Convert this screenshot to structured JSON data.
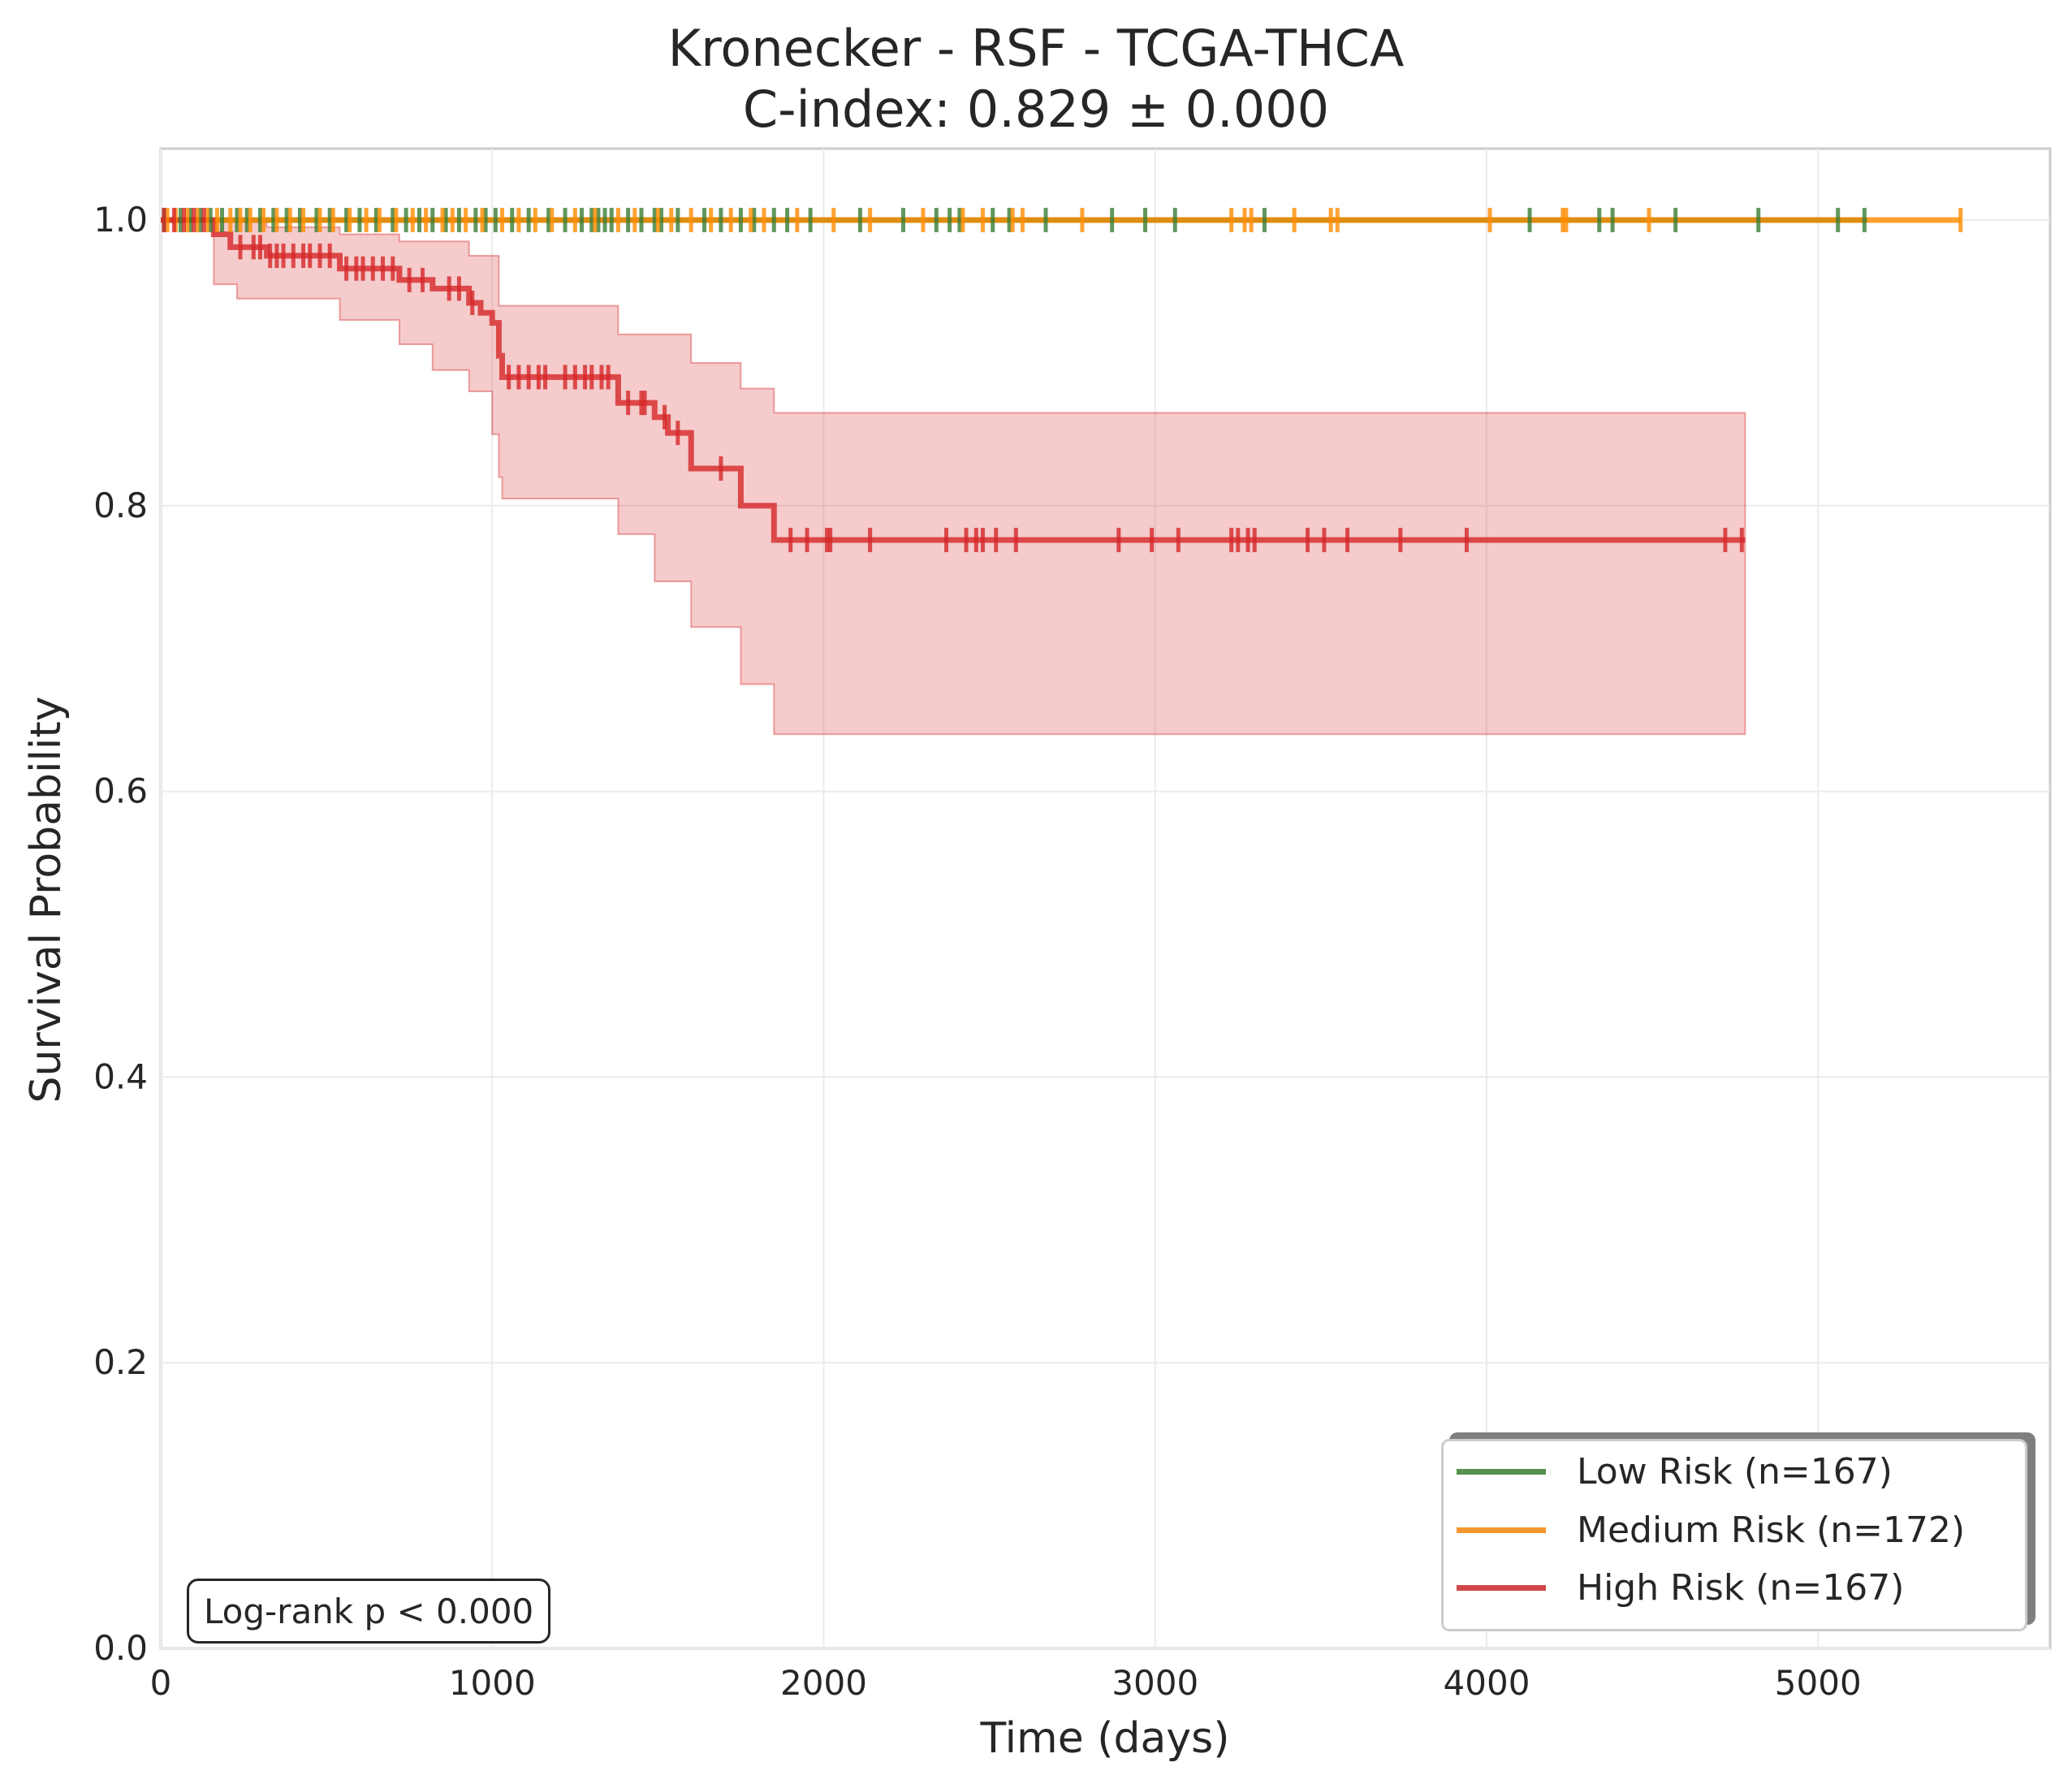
{
  "title": "Kronecker - RSF - TCGA-THCA",
  "subtitle": "C-index: 0.829 ± 0.000",
  "stat_annotation": "Log-rank p < 0.000",
  "chart_data": {
    "type": "line",
    "style": "kaplan-meier step survival curves with censor ticks and confidence band",
    "xlabel": "Time (days)",
    "ylabel": "Survival Probability",
    "xlim": [
      0,
      5700
    ],
    "ylim": [
      0,
      1.05
    ],
    "xticks": [
      0,
      1000,
      2000,
      3000,
      4000,
      5000
    ],
    "yticks": [
      0.0,
      0.2,
      0.4,
      0.6,
      0.8,
      1.0
    ],
    "xtick_labels": [
      "0",
      "1000",
      "2000",
      "3000",
      "4000",
      "5000"
    ],
    "ytick_labels": [
      "0.0",
      "0.2",
      "0.4",
      "0.6",
      "0.8",
      "1.0"
    ],
    "grid": true,
    "legend_position": "lower right",
    "series": [
      {
        "name": "Low Risk (n=167)",
        "color": "#3a7d34",
        "steps": [
          [
            0,
            1.0
          ],
          [
            5150,
            1.0
          ]
        ],
        "censor_times": [
          10,
          60,
          90,
          120,
          150,
          185,
          230,
          260,
          300,
          340,
          380,
          420,
          470,
          510,
          560,
          600,
          650,
          700,
          740,
          780,
          820,
          860,
          900,
          950,
          980,
          1010,
          1060,
          1110,
          1170,
          1220,
          1270,
          1300,
          1320,
          1340,
          1360,
          1410,
          1450,
          1490,
          1510,
          1560,
          1640,
          1690,
          1750,
          1790,
          1850,
          1890,
          1960,
          2110,
          2240,
          2340,
          2380,
          2410,
          2510,
          2560,
          2670,
          2870,
          2970,
          3060,
          3330,
          4130,
          4340,
          4380,
          4570,
          4820,
          5060,
          5140
        ]
      },
      {
        "name": "Medium Risk (n=172)",
        "color": "#ff8c00",
        "steps": [
          [
            0,
            1.0
          ],
          [
            5430,
            1.0
          ]
        ],
        "censor_times": [
          20,
          45,
          80,
          110,
          140,
          170,
          210,
          240,
          270,
          310,
          350,
          390,
          430,
          480,
          520,
          570,
          620,
          660,
          710,
          760,
          800,
          850,
          880,
          920,
          970,
          1030,
          1080,
          1130,
          1180,
          1250,
          1310,
          1380,
          1430,
          1500,
          1540,
          1600,
          1660,
          1720,
          1780,
          1820,
          1920,
          2030,
          2140,
          2300,
          2420,
          2480,
          2570,
          2600,
          2780,
          3230,
          3270,
          3290,
          3420,
          3530,
          3550,
          4010,
          4230,
          4240,
          4490,
          5430
        ]
      },
      {
        "name": "High Risk (n=167)",
        "color": "#d62728",
        "steps": [
          [
            0,
            1.0
          ],
          [
            160,
            1.0
          ],
          [
            160,
            0.99
          ],
          [
            210,
            0.99
          ],
          [
            210,
            0.981
          ],
          [
            320,
            0.981
          ],
          [
            320,
            0.975
          ],
          [
            540,
            0.975
          ],
          [
            540,
            0.966
          ],
          [
            720,
            0.966
          ],
          [
            720,
            0.958
          ],
          [
            820,
            0.958
          ],
          [
            820,
            0.952
          ],
          [
            930,
            0.952
          ],
          [
            930,
            0.942
          ],
          [
            965,
            0.942
          ],
          [
            965,
            0.935
          ],
          [
            1000,
            0.935
          ],
          [
            1000,
            0.928
          ],
          [
            1020,
            0.928
          ],
          [
            1020,
            0.905
          ],
          [
            1030,
            0.905
          ],
          [
            1030,
            0.89
          ],
          [
            1380,
            0.89
          ],
          [
            1380,
            0.872
          ],
          [
            1490,
            0.872
          ],
          [
            1490,
            0.862
          ],
          [
            1530,
            0.862
          ],
          [
            1530,
            0.851
          ],
          [
            1600,
            0.851
          ],
          [
            1600,
            0.826
          ],
          [
            1750,
            0.826
          ],
          [
            1750,
            0.8
          ],
          [
            1850,
            0.8
          ],
          [
            1850,
            0.776
          ],
          [
            4780,
            0.776
          ]
        ],
        "ci_upper": [
          [
            0,
            1.0
          ],
          [
            160,
            1.0
          ],
          [
            160,
            1.0
          ],
          [
            320,
            1.0
          ],
          [
            320,
            0.995
          ],
          [
            540,
            0.995
          ],
          [
            540,
            0.99
          ],
          [
            720,
            0.99
          ],
          [
            720,
            0.985
          ],
          [
            930,
            0.985
          ],
          [
            930,
            0.975
          ],
          [
            1020,
            0.975
          ],
          [
            1020,
            0.94
          ],
          [
            1380,
            0.94
          ],
          [
            1380,
            0.92
          ],
          [
            1600,
            0.92
          ],
          [
            1600,
            0.9
          ],
          [
            1750,
            0.9
          ],
          [
            1750,
            0.882
          ],
          [
            1850,
            0.882
          ],
          [
            1850,
            0.865
          ],
          [
            4780,
            0.865
          ]
        ],
        "ci_lower": [
          [
            0,
            1.0
          ],
          [
            160,
            1.0
          ],
          [
            160,
            0.955
          ],
          [
            230,
            0.955
          ],
          [
            230,
            0.945
          ],
          [
            540,
            0.945
          ],
          [
            540,
            0.93
          ],
          [
            720,
            0.93
          ],
          [
            720,
            0.913
          ],
          [
            820,
            0.913
          ],
          [
            820,
            0.895
          ],
          [
            930,
            0.895
          ],
          [
            930,
            0.88
          ],
          [
            1000,
            0.88
          ],
          [
            1000,
            0.85
          ],
          [
            1020,
            0.85
          ],
          [
            1020,
            0.82
          ],
          [
            1030,
            0.82
          ],
          [
            1030,
            0.805
          ],
          [
            1380,
            0.805
          ],
          [
            1380,
            0.78
          ],
          [
            1490,
            0.78
          ],
          [
            1490,
            0.747
          ],
          [
            1600,
            0.747
          ],
          [
            1600,
            0.715
          ],
          [
            1750,
            0.715
          ],
          [
            1750,
            0.675
          ],
          [
            1850,
            0.675
          ],
          [
            1850,
            0.64
          ],
          [
            4780,
            0.64
          ]
        ],
        "censor_times": [
          10,
          40,
          70,
          100,
          130,
          240,
          280,
          300,
          330,
          350,
          370,
          400,
          430,
          450,
          480,
          510,
          560,
          590,
          610,
          640,
          670,
          700,
          750,
          790,
          870,
          900,
          940,
          1050,
          1080,
          1110,
          1140,
          1160,
          1220,
          1250,
          1280,
          1300,
          1330,
          1350,
          1410,
          1450,
          1460,
          1520,
          1560,
          1690,
          1900,
          1950,
          2010,
          2020,
          2140,
          2370,
          2430,
          2460,
          2480,
          2520,
          2580,
          2890,
          2990,
          3070,
          3230,
          3250,
          3280,
          3300,
          3460,
          3510,
          3580,
          3740,
          3940,
          4720,
          4770
        ]
      }
    ]
  }
}
